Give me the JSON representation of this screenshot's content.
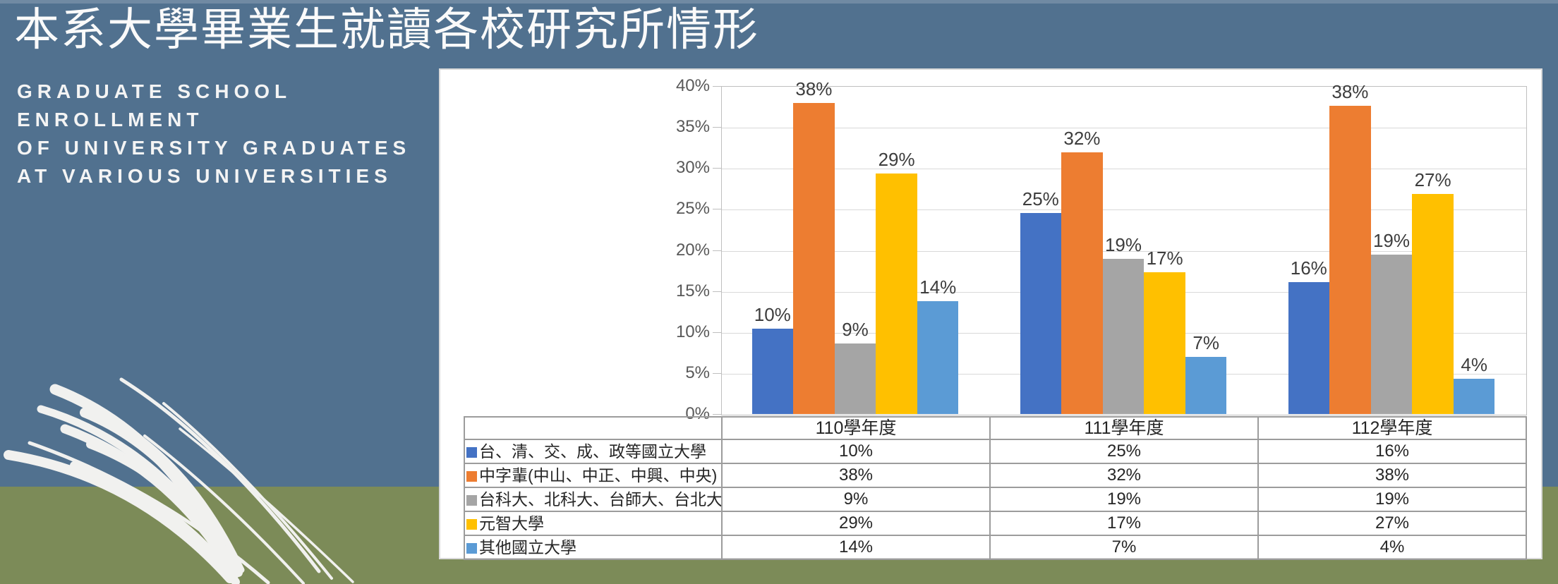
{
  "slide": {
    "title": "本系大學畢業生就讀各校研究所情形",
    "subtitle_lines": [
      "GRADUATE SCHOOL",
      "ENROLLMENT",
      "OF UNIVERSITY GRADUATES",
      "AT VARIOUS UNIVERSITIES"
    ],
    "colors": {
      "background_top": "#51718F",
      "background_bottom": "#7C8B58",
      "panel": "#FFFFFF",
      "grass": "#F1F1EF",
      "gridline": "#D9D9D9",
      "table_border": "#9C9C9C",
      "tick_text": "#595959",
      "label_text": "#3D3D3D"
    }
  },
  "chart_data": {
    "type": "bar",
    "title": "",
    "xlabel": "",
    "ylabel": "",
    "categories": [
      "110學年度",
      "111學年度",
      "112學年度"
    ],
    "series": [
      {
        "name": "台、清、交、成、政等國立大學",
        "color": "#4472C4",
        "values": [
          10,
          25,
          16
        ],
        "plot_values": [
          10.4,
          24.5,
          16.1
        ]
      },
      {
        "name": "中字輩(中山、中正、中興、中央)",
        "color": "#ED7D31",
        "values": [
          38,
          32,
          38
        ],
        "plot_values": [
          37.9,
          31.9,
          37.6
        ]
      },
      {
        "name": "台科大、北科大、台師大、台北大學",
        "color": "#A5A5A5",
        "values": [
          9,
          19,
          19
        ],
        "plot_values": [
          8.6,
          18.9,
          19.4
        ]
      },
      {
        "name": "元智大學",
        "color": "#FFC000",
        "values": [
          29,
          17,
          27
        ],
        "plot_values": [
          29.3,
          17.3,
          26.8
        ]
      },
      {
        "name": "其他國立大學",
        "color": "#5B9BD5",
        "values": [
          14,
          7,
          4
        ],
        "plot_values": [
          13.8,
          7.0,
          4.3
        ]
      }
    ],
    "value_suffix": "%",
    "ylim": [
      0,
      40
    ],
    "ytick_step": 5,
    "ytick_labels": [
      "0%",
      "5%",
      "10%",
      "15%",
      "20%",
      "25%",
      "30%",
      "35%",
      "40%"
    ],
    "grid": true,
    "data_labels": true,
    "legend_position": "data-table-below"
  }
}
